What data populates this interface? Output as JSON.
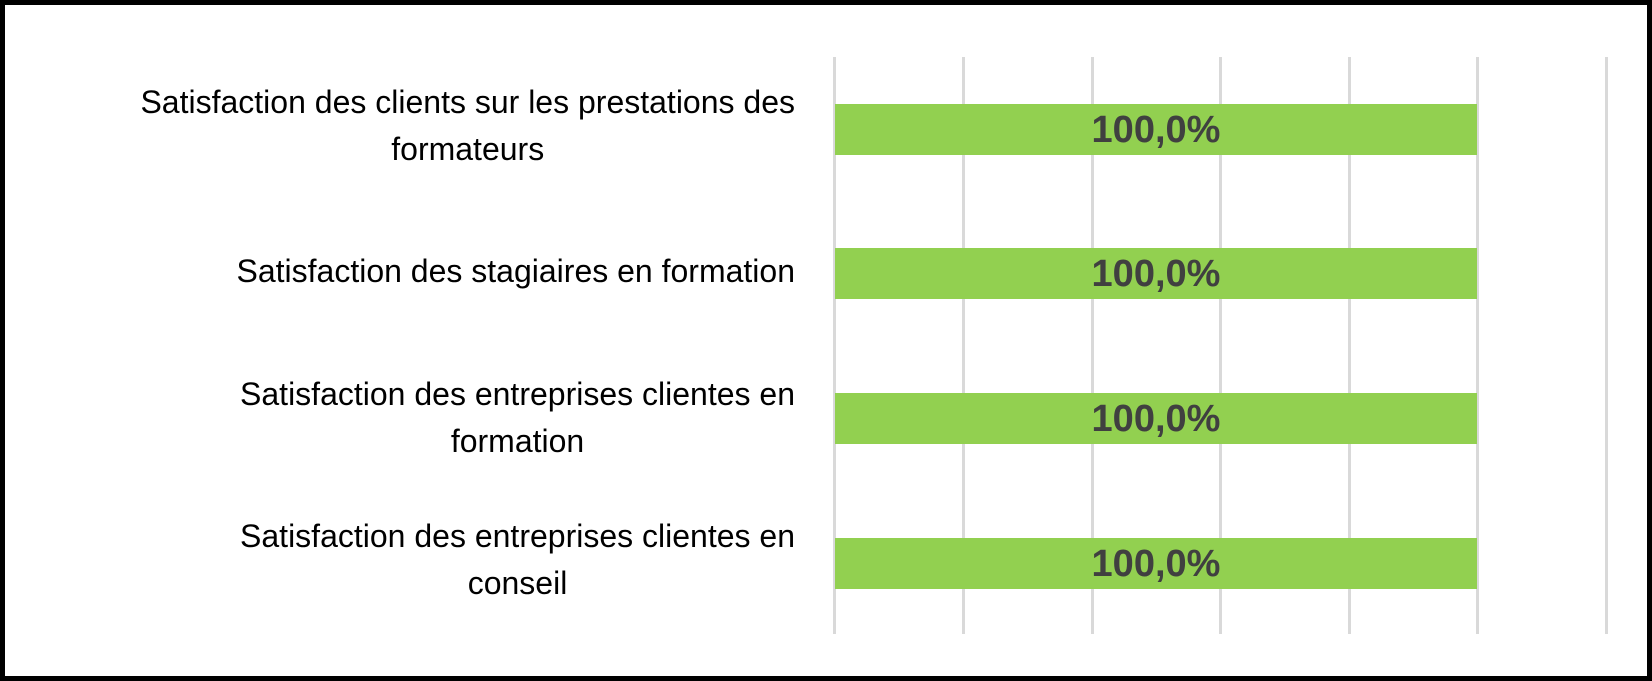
{
  "chart_data": {
    "type": "bar",
    "orientation": "horizontal",
    "title": "",
    "categories": [
      {
        "label": "Satisfaction des clients sur les prestations des formateurs",
        "lines": [
          "Satisfaction des clients sur les prestations des",
          "formateurs"
        ]
      },
      {
        "label": "Satisfaction des stagiaires en formation",
        "lines": [
          "Satisfaction des stagiaires en formation",
          ""
        ]
      },
      {
        "label": "Satisfaction des entreprises clientes en formation",
        "lines": [
          "Satisfaction des entreprises clientes en",
          "formation"
        ]
      },
      {
        "label": "Satisfaction des entreprises clientes en conseil",
        "lines": [
          "Satisfaction des entreprises clientes en",
          "conseil"
        ]
      }
    ],
    "values": [
      100.0,
      100.0,
      100.0,
      100.0
    ],
    "value_labels": [
      "100,0%",
      "100,0%",
      "100,0%",
      "100,0%"
    ],
    "value_label_position": "center",
    "xlabel": "",
    "ylabel": "",
    "xlim": [
      0,
      120
    ],
    "x_tick_step": 20,
    "x_tick_labels_shown": false,
    "grid": "vertical-on",
    "legend": "none",
    "colors": {
      "bar_fill": "#92D050",
      "value_label": "#404040",
      "gridline": "#D9D9D9",
      "category_text": "#000000",
      "background": "#FFFFFF",
      "frame_border": "#000000"
    }
  }
}
